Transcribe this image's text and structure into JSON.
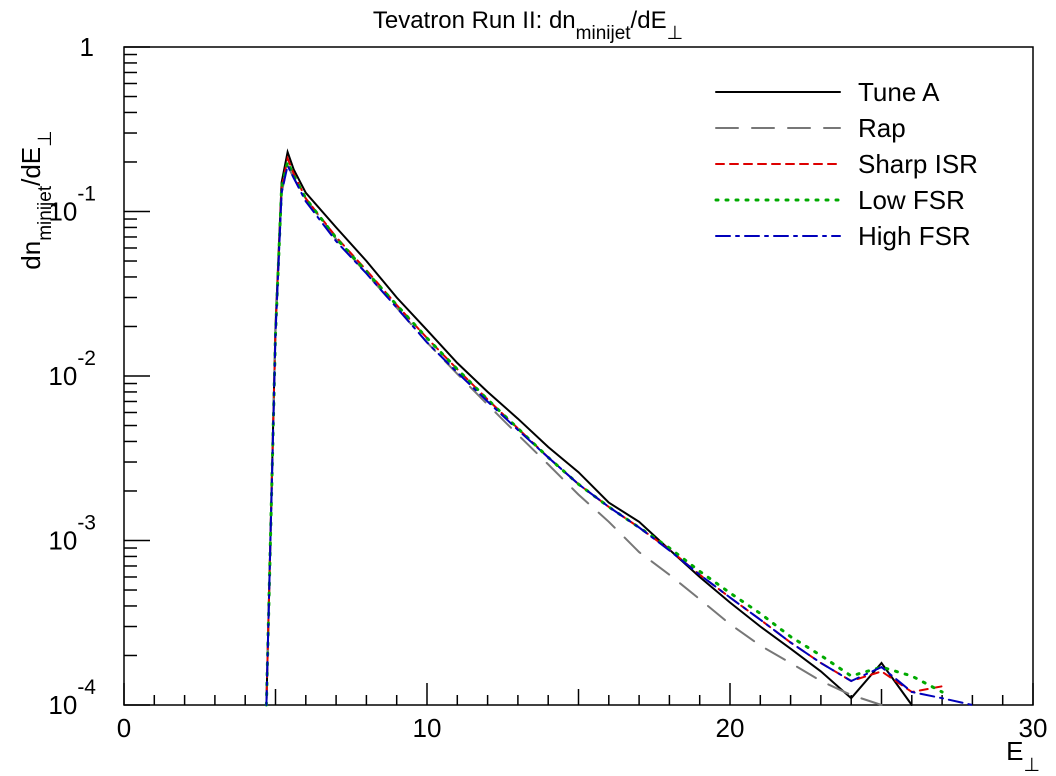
{
  "chart_data": {
    "type": "line",
    "title": [
      "Tevatron Run II: dn",
      "minijet",
      "/dE",
      "⊥"
    ],
    "y_label": [
      "dn",
      "minijet",
      "/dE",
      "⊥"
    ],
    "x_label": [
      "E",
      "⊥"
    ],
    "x": [
      4.7,
      5.0,
      5.2,
      5.4,
      5.6,
      6,
      7,
      8,
      9,
      10,
      11,
      12,
      13,
      14,
      15,
      16,
      17,
      18,
      19,
      20,
      21,
      22,
      23,
      24,
      25,
      26,
      27,
      28,
      29
    ],
    "xlim": [
      0,
      30
    ],
    "xticks": [
      0,
      10,
      20,
      30
    ],
    "ylim": [
      0.0001,
      1
    ],
    "log_y": true,
    "yticks": [
      {
        "value": 0.0001,
        "label": "10",
        "exponent": "-4"
      },
      {
        "value": 0.001,
        "label": "10",
        "exponent": "-3"
      },
      {
        "value": 0.01,
        "label": "10",
        "exponent": "-2"
      },
      {
        "value": 0.1,
        "label": "10",
        "exponent": "-1"
      },
      1
    ],
    "legend": "top-right",
    "series": [
      {
        "name": "Tune A",
        "color": "#000000",
        "dash": "solid",
        "values": [
          0.0001,
          0.02,
          0.15,
          0.23,
          0.18,
          0.13,
          0.08,
          0.05,
          0.03,
          0.019,
          0.012,
          0.008,
          0.0055,
          0.0037,
          0.0026,
          0.0017,
          0.0013,
          0.00088,
          0.0006,
          0.00042,
          0.0003,
          0.00022,
          0.00016,
          0.00011,
          0.00018,
          0.0001,
          null,
          null,
          null
        ]
      },
      {
        "name": "Rap",
        "color": "#777777",
        "dash": "long",
        "values": [
          0.0001,
          0.018,
          0.13,
          0.19,
          0.16,
          0.12,
          0.068,
          0.042,
          0.026,
          0.016,
          0.0103,
          0.0067,
          0.0044,
          0.0029,
          0.0019,
          0.0013,
          0.00085,
          0.00062,
          0.00044,
          0.00031,
          0.00023,
          0.00018,
          0.00014,
          0.000115,
          0.0001,
          null,
          null,
          null,
          null
        ]
      },
      {
        "name": "Sharp ISR",
        "color": "#dd0000",
        "dash": "short",
        "values": [
          0.0001,
          0.019,
          0.14,
          0.21,
          0.17,
          0.12,
          0.07,
          0.044,
          0.027,
          0.017,
          0.011,
          0.0072,
          0.0048,
          0.0032,
          0.0022,
          0.0016,
          0.0012,
          0.00088,
          0.00062,
          0.00045,
          0.00033,
          0.00024,
          0.00018,
          0.00014,
          0.00016,
          0.00012,
          0.00013,
          null,
          null
        ]
      },
      {
        "name": "Low FSR",
        "color": "#00aa00",
        "dash": "dot",
        "values": [
          0.0001,
          0.018,
          0.14,
          0.2,
          0.165,
          0.12,
          0.069,
          0.043,
          0.027,
          0.017,
          0.011,
          0.0072,
          0.0048,
          0.0032,
          0.0022,
          0.0016,
          0.0012,
          0.0009,
          0.00065,
          0.00048,
          0.00036,
          0.00026,
          0.0002,
          0.00015,
          0.00017,
          0.00015,
          0.00012,
          null,
          null
        ]
      },
      {
        "name": "High FSR",
        "color": "#0000bb",
        "dash": "dashdot",
        "values": [
          0.0001,
          0.018,
          0.13,
          0.19,
          0.16,
          0.115,
          0.066,
          0.042,
          0.026,
          0.016,
          0.0105,
          0.007,
          0.0047,
          0.0032,
          0.0022,
          0.0016,
          0.0012,
          0.00087,
          0.00062,
          0.00045,
          0.00033,
          0.00024,
          0.00018,
          0.00014,
          0.00017,
          0.00012,
          0.00011,
          0.0001,
          null
        ]
      }
    ]
  }
}
